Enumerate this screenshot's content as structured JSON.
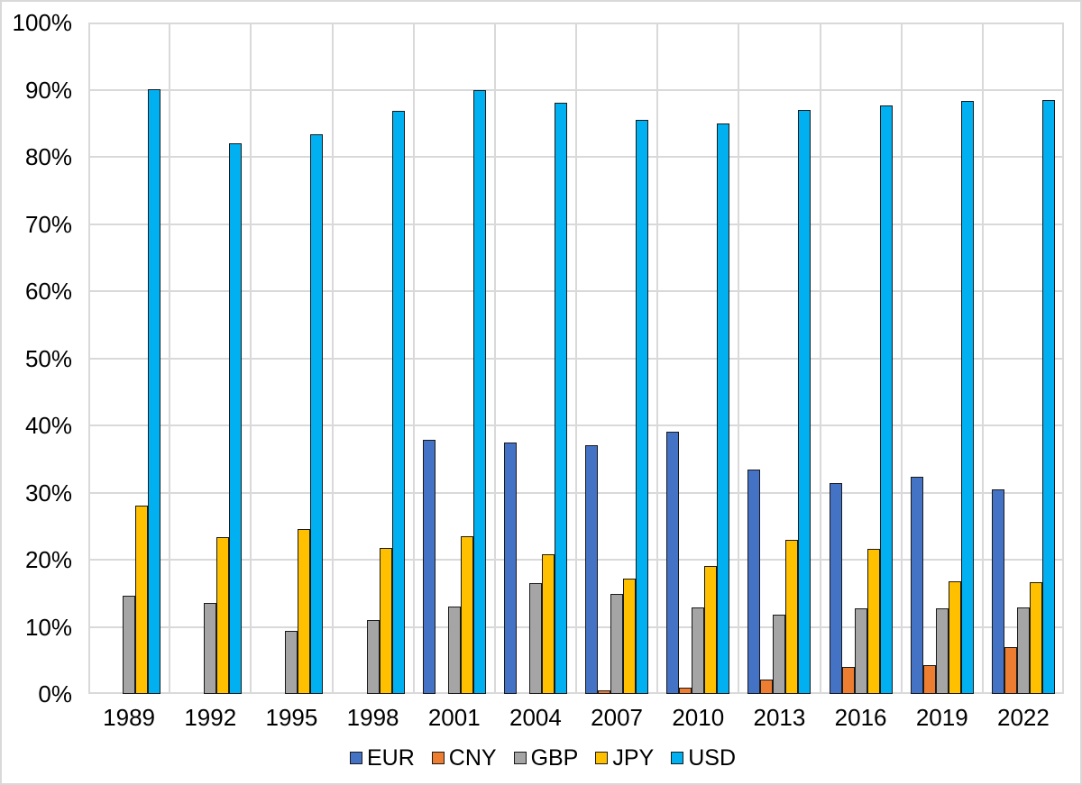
{
  "chart_data": {
    "type": "bar",
    "title": "",
    "xlabel": "",
    "ylabel": "",
    "categories": [
      "1989",
      "1992",
      "1995",
      "1998",
      "2001",
      "2004",
      "2007",
      "2010",
      "2013",
      "2016",
      "2019",
      "2022"
    ],
    "series": [
      {
        "name": "EUR",
        "color": "#4472C4",
        "values": [
          null,
          null,
          null,
          null,
          37.9,
          37.4,
          37.0,
          39.1,
          33.4,
          31.4,
          32.3,
          30.5
        ]
      },
      {
        "name": "CNY",
        "color": "#ED7D31",
        "values": [
          null,
          null,
          null,
          null,
          null,
          null,
          0.5,
          0.9,
          2.2,
          4.0,
          4.3,
          7.0
        ]
      },
      {
        "name": "GBP",
        "color": "#A5A5A5",
        "values": [
          14.6,
          13.6,
          9.4,
          11.0,
          13.0,
          16.5,
          14.9,
          12.9,
          11.8,
          12.8,
          12.8,
          12.9
        ]
      },
      {
        "name": "JPY",
        "color": "#FFC000",
        "values": [
          28.0,
          23.4,
          24.5,
          21.7,
          23.5,
          20.8,
          17.2,
          19.0,
          23.0,
          21.6,
          16.8,
          16.7
        ]
      },
      {
        "name": "USD",
        "color": "#00B0F0",
        "values": [
          90.0,
          82.0,
          83.3,
          86.8,
          89.9,
          88.0,
          85.5,
          84.9,
          87.0,
          87.6,
          88.3,
          88.5
        ]
      }
    ],
    "ylim": [
      0,
      100
    ],
    "ytick_step": 10,
    "ytick_labels": [
      "0%",
      "10%",
      "20%",
      "30%",
      "40%",
      "50%",
      "60%",
      "70%",
      "80%",
      "90%",
      "100%"
    ],
    "grid": true,
    "legend_position": "bottom"
  },
  "colors": {
    "background": "#FFFFFF",
    "gridline": "#D9D9D9",
    "plot_border": "#D9D9D9",
    "bar_border": "#1A1A1A",
    "text": "#000000"
  }
}
